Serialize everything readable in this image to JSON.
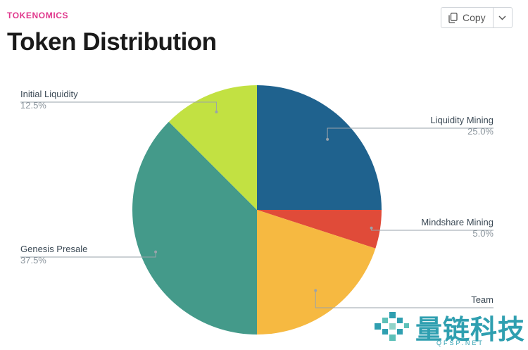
{
  "header": {
    "eyebrow": "TOKENOMICS",
    "title": "Token Distribution"
  },
  "toolbar": {
    "copy_label": "Copy",
    "copy_icon": "copy-icon",
    "dropdown_icon": "chevron-down-icon"
  },
  "chart_data": {
    "type": "pie",
    "start_angle_deg": 0,
    "direction": "clockwise",
    "legend": "outside labels with leader lines",
    "slices": [
      {
        "label": "Liquidity Mining",
        "value": 25.0,
        "value_label": "25.0%",
        "color": "#1f628e"
      },
      {
        "label": "Mindshare Mining",
        "value": 5.0,
        "value_label": "5.0%",
        "color": "#e04b39"
      },
      {
        "label": "Team",
        "value": 20.0,
        "value_label": "",
        "color": "#f6b941"
      },
      {
        "label": "Genesis Presale",
        "value": 37.5,
        "value_label": "37.5%",
        "color": "#449a8a"
      },
      {
        "label": "Initial Liquidity",
        "value": 12.5,
        "value_label": "12.5%",
        "color": "#c2e142"
      }
    ]
  },
  "watermark": {
    "text": "量链科技",
    "subtext": "QFSP.NET",
    "color": "#2f9fb0"
  }
}
